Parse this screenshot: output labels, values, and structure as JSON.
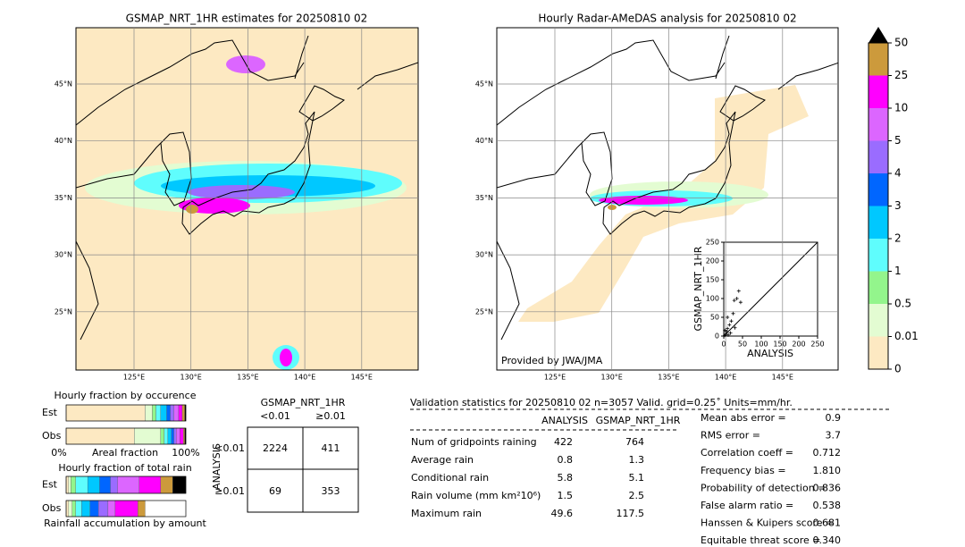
{
  "left_map": {
    "title": "GSMAP_NRT_1HR estimates for 20250810 02",
    "lat_labels": [
      "45°N",
      "40°N",
      "35°N",
      "30°N",
      "25°N"
    ],
    "lon_labels": [
      "125°E",
      "130°E",
      "135°E",
      "140°E",
      "145°E"
    ]
  },
  "right_map": {
    "title": "Hourly Radar-AMeDAS analysis for 20250810 02",
    "lat_labels": [
      "45°N",
      "40°N",
      "35°N",
      "30°N",
      "25°N"
    ],
    "lon_labels": [
      "125°E",
      "130°E",
      "135°E",
      "140°E",
      "145°E"
    ],
    "credit": "Provided by JWA/JMA"
  },
  "colorbar": {
    "levels": [
      0,
      0.01,
      0.5,
      1,
      2,
      3,
      4,
      5,
      10,
      25,
      50
    ],
    "colors": [
      "#fde9c2",
      "#e3fcd2",
      "#93f58c",
      "#5ffdfd",
      "#00c8ff",
      "#0066ff",
      "#9a6cff",
      "#dc66ff",
      "#ff00ff",
      "#cc9a3c"
    ],
    "over_color": "#000000"
  },
  "scatter": {
    "type": "scatter",
    "xlabel": "ANALYSIS",
    "ylabel": "GSMAP_NRT_1HR",
    "xlim": [
      0,
      250
    ],
    "ylim": [
      0,
      250
    ],
    "xticks": [
      0,
      50,
      100,
      150,
      200,
      250
    ],
    "yticks": [
      0,
      50,
      100,
      150,
      200,
      250
    ],
    "x": [
      3,
      5,
      8,
      10,
      12,
      3,
      15,
      20,
      25,
      28,
      35,
      40,
      45,
      18,
      30,
      10
    ],
    "y": [
      2,
      5,
      12,
      20,
      3,
      15,
      30,
      40,
      60,
      95,
      100,
      120,
      90,
      8,
      22,
      50
    ]
  },
  "occurrence": {
    "title": "Hourly fraction by occurence",
    "rows": [
      "Est",
      "Obs"
    ],
    "est": [
      66,
      6,
      3,
      4,
      5,
      3,
      3,
      4,
      3,
      2,
      1
    ],
    "obs": [
      57,
      22,
      3,
      3,
      3,
      2,
      2,
      3,
      3,
      1,
      1
    ],
    "axis_labels": [
      "0%",
      "Areal fraction",
      "100%"
    ]
  },
  "total_rain": {
    "title": "Hourly fraction of total rain",
    "rows": [
      "Est",
      "Obs"
    ],
    "est": [
      2,
      2,
      4,
      10,
      10,
      9,
      6,
      18,
      18,
      10,
      11
    ],
    "obs": [
      2,
      3,
      3,
      5,
      7,
      7,
      8,
      6,
      19,
      6,
      0
    ],
    "xlabel": "Rainfall accumulation by amount"
  },
  "contingency": {
    "column_title": "GSMAP_NRT_1HR",
    "columns": [
      "<0.01",
      "≥0.01"
    ],
    "row_title": "ANALYSIS",
    "rows": [
      "<0.01",
      "≥0.01"
    ],
    "cells": [
      [
        2224,
        411
      ],
      [
        69,
        353
      ]
    ]
  },
  "validation": {
    "title": "Validation statistics for 20250810 02  n=3057 Valid. grid=0.25˚ Units=mm/hr.",
    "columns": [
      "ANALYSIS",
      "GSMAP_NRT_1HR"
    ],
    "rows": [
      {
        "label": "Num of gridpoints raining",
        "values": [
          422,
          764
        ]
      },
      {
        "label": "Average rain",
        "values": [
          0.8,
          1.3
        ]
      },
      {
        "label": "Conditional rain",
        "values": [
          5.8,
          5.1
        ]
      },
      {
        "label": "Rain volume (mm km²10⁶)",
        "values": [
          1.5,
          2.5
        ]
      },
      {
        "label": "Maximum rain",
        "values": [
          49.6,
          117.5
        ]
      }
    ],
    "scores": [
      {
        "label": "Mean abs error =",
        "value": 0.9
      },
      {
        "label": "RMS error =",
        "value": 3.7
      },
      {
        "label": "Correlation coeff =",
        "value": 0.712
      },
      {
        "label": "Frequency bias =",
        "value": 1.81,
        "value_label": "1.810"
      },
      {
        "label": "Probability of detection =",
        "value": 0.836
      },
      {
        "label": "False alarm ratio =",
        "value": 0.538
      },
      {
        "label": "Hanssen & Kuipers score =",
        "value": 0.681
      },
      {
        "label": "Equitable threat score =",
        "value": 0.34,
        "value_label": "0.340"
      }
    ]
  }
}
